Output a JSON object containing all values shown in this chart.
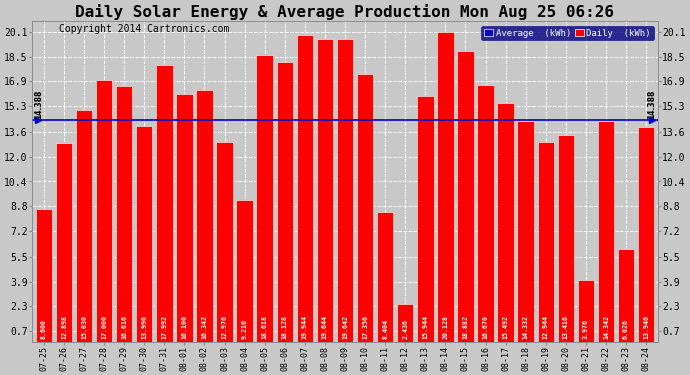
{
  "title": "Daily Solar Energy & Average Production Mon Aug 25 06:26",
  "copyright": "Copyright 2014 Cartronics.com",
  "legend_avg": "Average  (kWh)",
  "legend_daily": "Daily  (kWh)",
  "average_line": 14.388,
  "average_label": "14.388",
  "categories": [
    "07-25",
    "07-26",
    "07-27",
    "07-28",
    "07-29",
    "07-30",
    "07-31",
    "08-01",
    "08-02",
    "08-03",
    "08-04",
    "08-05",
    "08-06",
    "08-07",
    "08-08",
    "08-09",
    "08-10",
    "08-11",
    "08-12",
    "08-13",
    "08-14",
    "08-15",
    "08-16",
    "08-17",
    "08-18",
    "08-19",
    "08-20",
    "08-21",
    "08-22",
    "08-23",
    "08-24"
  ],
  "values": [
    8.6,
    12.898,
    15.03,
    17.0,
    16.616,
    13.99,
    17.992,
    16.1,
    16.342,
    12.976,
    9.21,
    18.618,
    18.128,
    19.944,
    19.644,
    19.642,
    17.356,
    8.404,
    2.436,
    15.944,
    20.128,
    18.882,
    16.67,
    15.492,
    14.332,
    12.944,
    13.416,
    3.976,
    14.342,
    6.026,
    13.946
  ],
  "bar_color": "#ff0000",
  "bar_edge_color": "#ffffff",
  "avg_line_color": "#0000cc",
  "background_color": "#c8c8c8",
  "plot_bg_color": "#c8c8c8",
  "grid_color": "#ffffff",
  "yticks": [
    0.7,
    2.3,
    3.9,
    5.5,
    7.2,
    8.8,
    10.4,
    12.0,
    13.6,
    15.3,
    16.9,
    18.5,
    20.1
  ],
  "ylim": [
    0.0,
    20.8
  ],
  "title_fontsize": 11.5,
  "copyright_fontsize": 7,
  "label_fontsize": 4.8,
  "tick_fontsize": 6,
  "ytick_fontsize": 7
}
